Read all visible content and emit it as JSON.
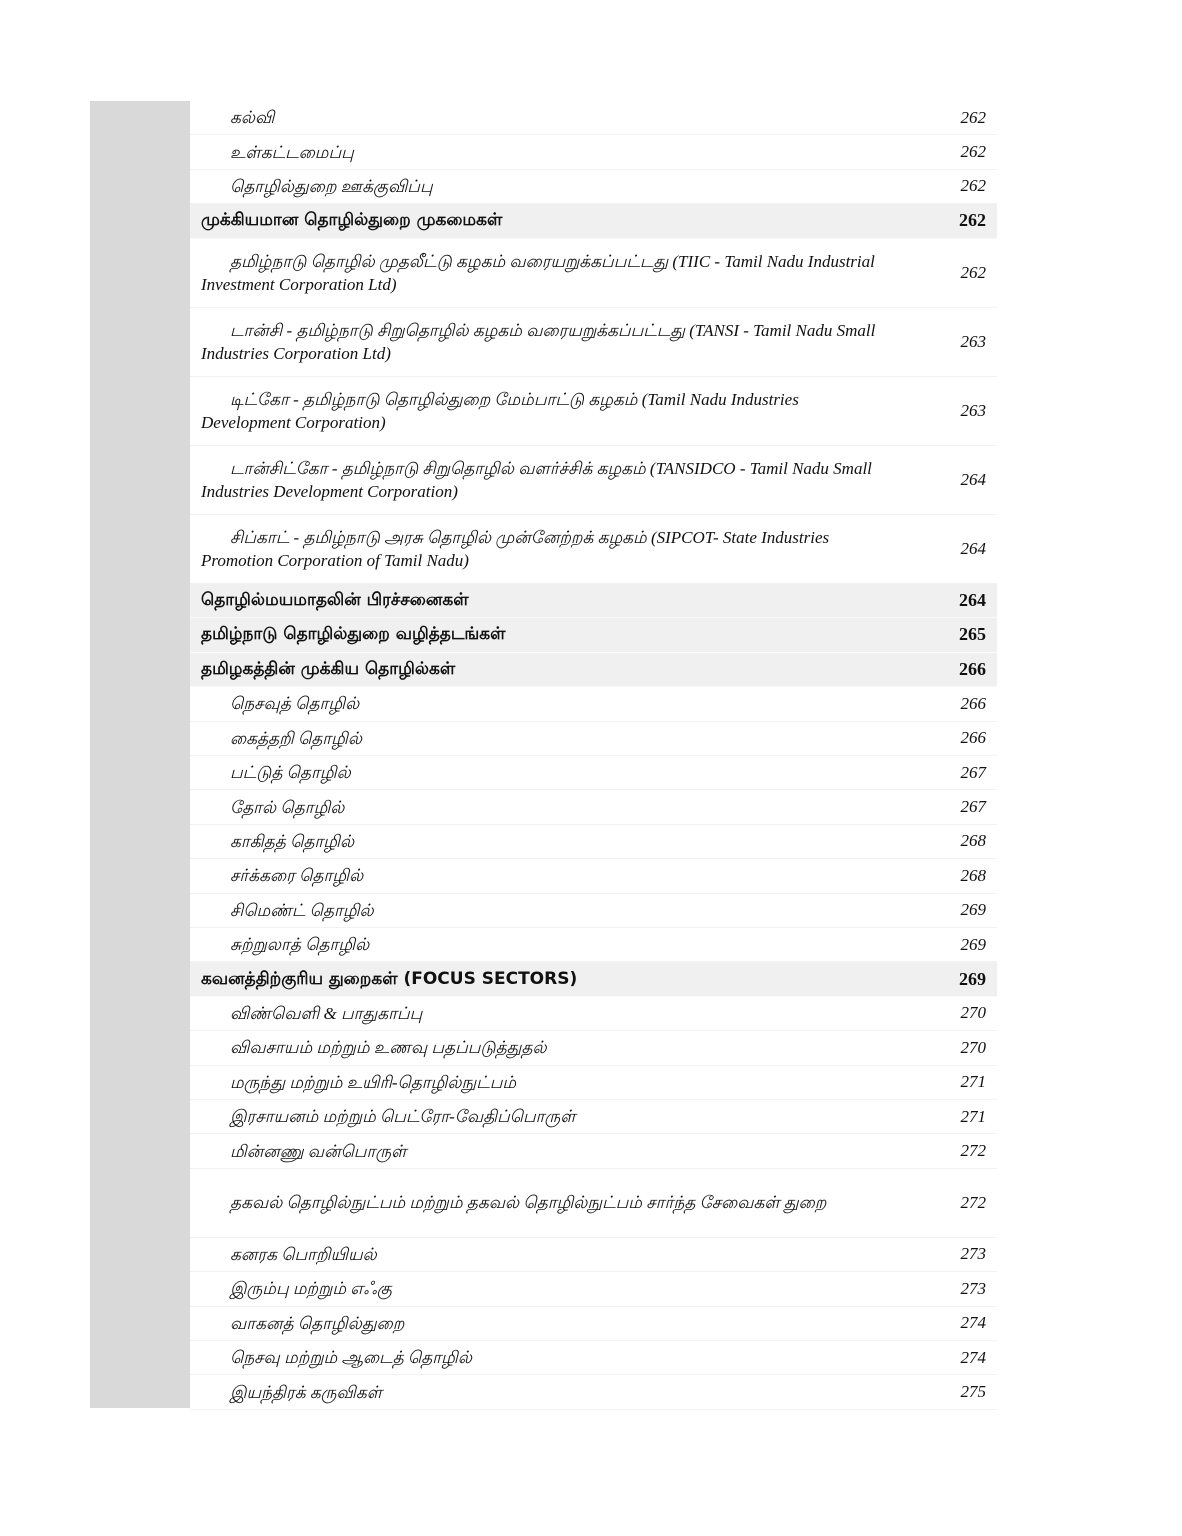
{
  "toc": [
    {
      "type": "normal",
      "title": "கல்வி",
      "page": "262"
    },
    {
      "type": "normal",
      "title": "உள்கட்டமைப்பு",
      "page": "262"
    },
    {
      "type": "normal",
      "title": "தொழில்துறை ஊக்குவிப்பு",
      "page": "262"
    },
    {
      "type": "heading",
      "title": "முக்கியமான  தொழில்துறை  முகமைகள்",
      "page": "262"
    },
    {
      "type": "tall",
      "title": "தமிழ்நாடு தொழில் முதலீட்டு கழகம் வரையறுக்கப்பட்டது (TIIC - Tamil Nadu Industrial Investment Corporation Ltd)",
      "page": "262"
    },
    {
      "type": "tall",
      "title": "டான்சி - தமிழ்நாடு சிறுதொழில் கழகம் வரையறுக்கப்பட்டது (TANSI - Tamil Nadu Small Industries Corporation Ltd)",
      "page": "263"
    },
    {
      "type": "tall",
      "title": "டிட்கோ - தமிழ்நாடு தொழில்துறை மேம்பாட்டு கழகம் (Tamil Nadu Industries Development Corporation)",
      "page": "263"
    },
    {
      "type": "tall",
      "title": "டான்சிட்கோ - தமிழ்நாடு சிறுதொழில் வளர்ச்சிக் கழகம் (TANSIDCO - Tamil Nadu Small Industries Development Corporation)",
      "page": "264"
    },
    {
      "type": "tall",
      "title": "சிப்காட் - தமிழ்நாடு அரசு தொழில் முன்னேற்றக் கழகம் (SIPCOT- State Industries Promotion Corporation of Tamil Nadu)",
      "page": "264"
    },
    {
      "type": "heading",
      "title": "தொழில்மயமாதலின்  பிரச்சனைகள்",
      "page": "264"
    },
    {
      "type": "heading",
      "title": "தமிழ்நாடு  தொழில்துறை  வழித்தடங்கள்",
      "page": "265"
    },
    {
      "type": "heading",
      "title": "தமிழகத்தின்  முக்கிய  தொழில்கள்",
      "page": "266"
    },
    {
      "type": "normal",
      "title": "நெசவுத் தொழில்",
      "page": "266"
    },
    {
      "type": "normal",
      "title": "கைத்தறி தொழில்",
      "page": "266"
    },
    {
      "type": "normal",
      "title": "பட்டுத் தொழில்",
      "page": "267"
    },
    {
      "type": "normal",
      "title": "தோல் தொழில்",
      "page": "267"
    },
    {
      "type": "normal",
      "title": "காகிதத் தொழில்",
      "page": "268"
    },
    {
      "type": "normal",
      "title": "சர்க்கரை தொழில்",
      "page": "268"
    },
    {
      "type": "normal",
      "title": "சிமெண்ட் தொழில்",
      "page": "269"
    },
    {
      "type": "normal",
      "title": "சுற்றுலாத் தொழில்",
      "page": "269"
    },
    {
      "type": "heading",
      "title": "கவனத்திற்குரிய  துறைகள்  (FOCUS SECTORS)",
      "page": "269"
    },
    {
      "type": "normal",
      "title": "விண்வெளி & பாதுகாப்பு",
      "page": "270"
    },
    {
      "type": "normal",
      "title": "விவசாயம் மற்றும் உணவு பதப்படுத்துதல்",
      "page": "270"
    },
    {
      "type": "normal",
      "title": "மருந்து மற்றும் உயிரி-தொழில்நுட்பம்",
      "page": "271"
    },
    {
      "type": "normal",
      "title": "இரசாயனம் மற்றும் பெட்ரோ-வேதிப்பொருள்",
      "page": "271"
    },
    {
      "type": "normal",
      "title": "மின்னணு வன்பொருள்",
      "page": "272"
    },
    {
      "type": "tall",
      "title": "தகவல் தொழில்நுட்பம் மற்றும் தகவல் தொழில்நுட்பம் சார்ந்த சேவைகள் துறை",
      "page": "272"
    },
    {
      "type": "normal",
      "title": "கனரக பொறியியல்",
      "page": "273"
    },
    {
      "type": "normal",
      "title": "இரும்பு மற்றும் எஃகு",
      "page": "273"
    },
    {
      "type": "normal",
      "title": "வாகனத் தொழில்துறை",
      "page": "274"
    },
    {
      "type": "normal",
      "title": "நெசவு மற்றும் ஆடைத் தொழில்",
      "page": "274"
    },
    {
      "type": "normal",
      "title": "இயந்திரக் கருவிகள்",
      "page": "275"
    }
  ]
}
